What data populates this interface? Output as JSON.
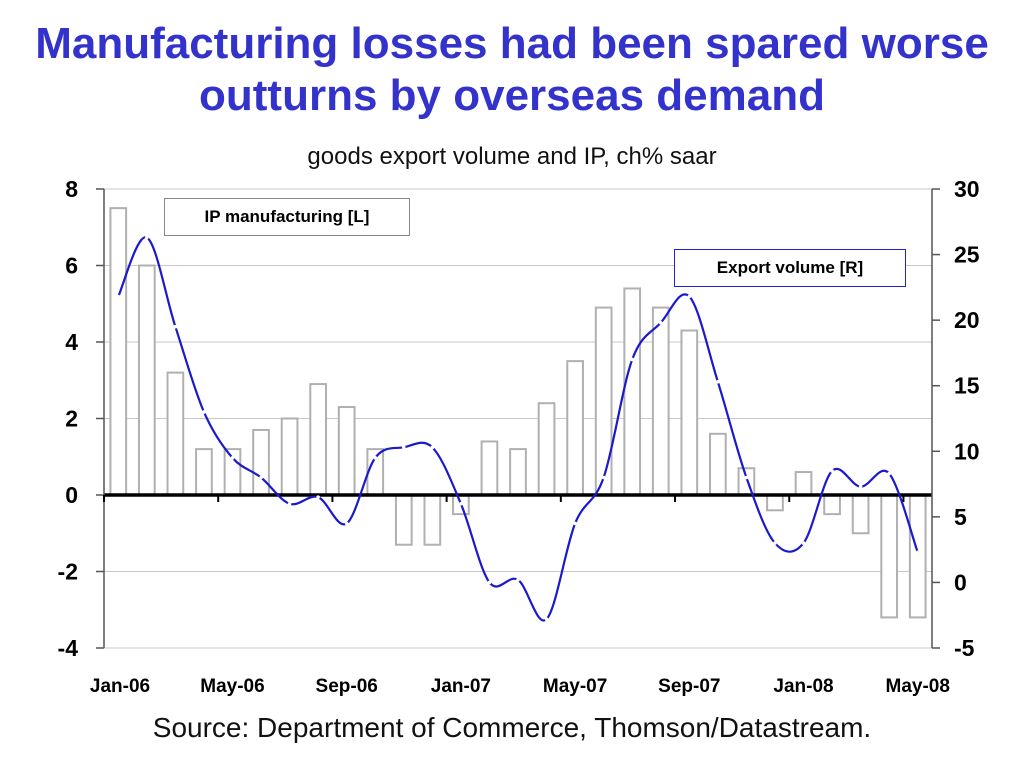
{
  "title": "Manufacturing losses had been spared worse outturns by overseas demand",
  "subtitle": "goods export volume and IP, ch% saar",
  "source": "Source: Department of Commerce, Thomson/Datastream.",
  "colors": {
    "title": "#3333cc",
    "line": "#1a1acc",
    "bar_edge": "#b0b0b0"
  },
  "chart_data": {
    "type": "bar",
    "x_tick_labels": [
      "Jan-06",
      "May-06",
      "Sep-06",
      "Jan-07",
      "May-07",
      "Sep-07",
      "Jan-08",
      "May-08"
    ],
    "y_left": {
      "ticks": [
        8,
        6,
        4,
        2,
        0,
        -2,
        -4
      ],
      "lim": [
        -4,
        8
      ]
    },
    "y_right": {
      "ticks": [
        30,
        25,
        20,
        15,
        10,
        5,
        0,
        -5
      ],
      "lim": [
        -5,
        30
      ]
    },
    "grid": true,
    "series": [
      {
        "name": "IP manufacturing [L]",
        "axis": "left",
        "type": "bar",
        "values": [
          7.5,
          6.0,
          3.2,
          1.2,
          1.2,
          1.7,
          2.0,
          2.9,
          2.3,
          1.2,
          -1.3,
          -1.3,
          -0.5,
          1.4,
          1.2,
          2.4,
          3.5,
          4.9,
          5.4,
          4.9,
          4.3,
          1.6,
          0.7,
          -0.4,
          0.6,
          -0.5,
          -1.0,
          -3.2,
          -3.2
        ]
      },
      {
        "name": "Export volume [R]",
        "axis": "right",
        "type": "line",
        "values": [
          21.8,
          26.3,
          19.5,
          13.0,
          9.5,
          8.0,
          6.0,
          6.5,
          4.5,
          9.5,
          10.3,
          10.3,
          6.0,
          0.0,
          0.2,
          -2.8,
          4.5,
          8.0,
          17.0,
          19.8,
          21.8,
          15.3,
          8.0,
          3.0,
          3.0,
          8.5,
          7.3,
          8.3,
          2.3
        ]
      }
    ]
  }
}
